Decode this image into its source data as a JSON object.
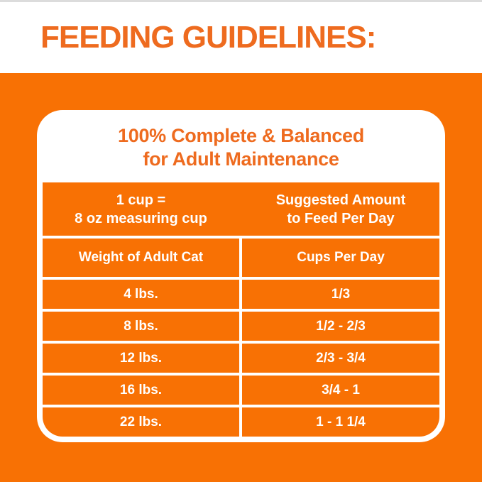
{
  "colors": {
    "orange_background": "#F87104",
    "orange_text": "#EE6B1F",
    "divider_white": "#FFFFFF",
    "top_edge_line": "#DCDCDC"
  },
  "header": {
    "title": "FEEDING GUIDELINES:"
  },
  "card": {
    "heading_line1": "100% Complete & Balanced",
    "heading_line2": "for Adult Maintenance",
    "info": {
      "left_line1": "1 cup =",
      "left_line2": "8 oz measuring cup",
      "right_line1": "Suggested Amount",
      "right_line2": "to Feed Per Day"
    },
    "columns": [
      "Weight of Adult Cat",
      "Cups Per Day"
    ],
    "rows": [
      {
        "weight": "4 lbs.",
        "cups": "1/3"
      },
      {
        "weight": "8 lbs.",
        "cups": "1/2 - 2/3"
      },
      {
        "weight": "12 lbs.",
        "cups": "2/3 - 3/4"
      },
      {
        "weight": "16 lbs.",
        "cups": "3/4 - 1"
      },
      {
        "weight": "22 lbs.",
        "cups": "1 - 1 1/4"
      }
    ]
  }
}
